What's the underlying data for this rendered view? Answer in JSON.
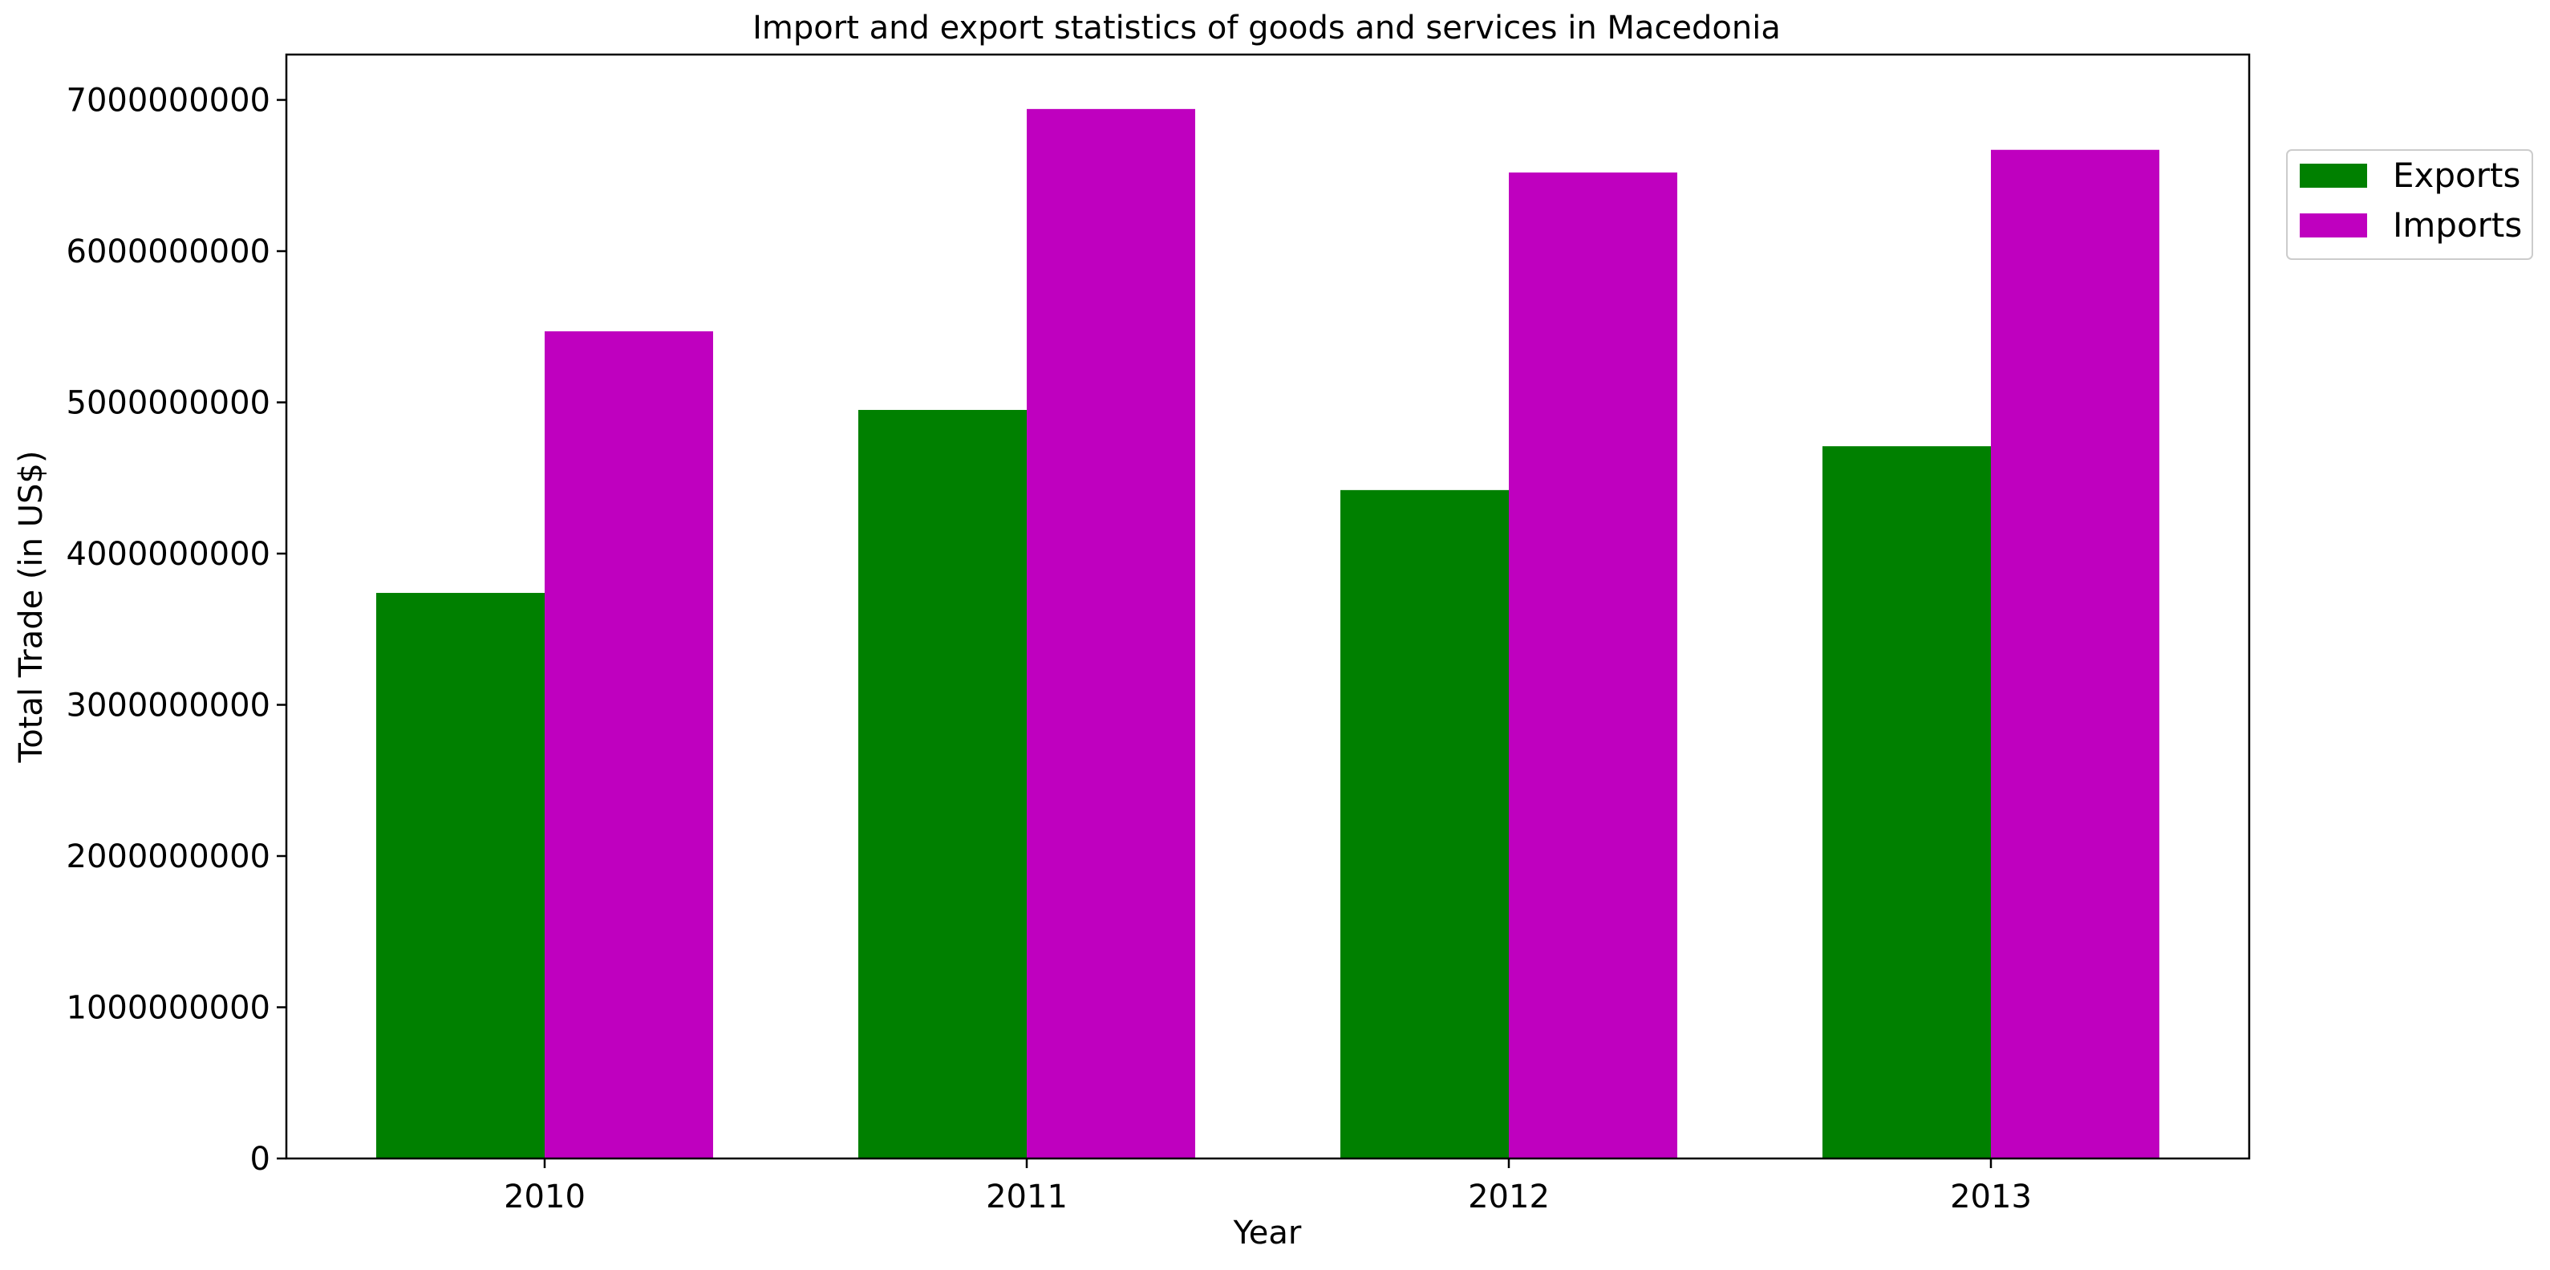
{
  "chart_data": {
    "type": "bar",
    "title": "Import and export statistics of goods and services in Macedonia",
    "xlabel": "Year",
    "ylabel": "Total Trade (in US$)",
    "categories": [
      "2010",
      "2011",
      "2012",
      "2013"
    ],
    "series": [
      {
        "name": "Exports",
        "color": "#008000",
        "values": [
          3740000000,
          4950000000,
          4420000000,
          4710000000
        ]
      },
      {
        "name": "Imports",
        "color": "#bf00bf",
        "values": [
          5470000000,
          6940000000,
          6520000000,
          6670000000
        ]
      }
    ],
    "ylim": [
      0,
      7300000000
    ],
    "yticks": [
      0,
      1000000000,
      2000000000,
      3000000000,
      4000000000,
      5000000000,
      6000000000,
      7000000000
    ],
    "ytick_labels": [
      "0",
      "1000000000",
      "2000000000",
      "3000000000",
      "4000000000",
      "5000000000",
      "6000000000",
      "7000000000"
    ],
    "grid": false,
    "legend_position": "upper-right-outside"
  }
}
